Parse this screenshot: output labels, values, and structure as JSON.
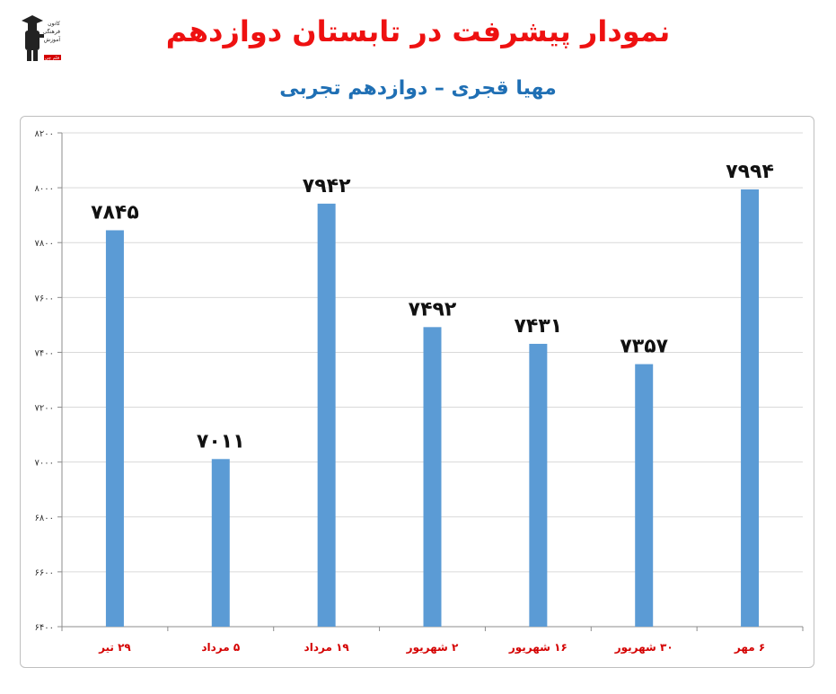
{
  "page": {
    "title": "نمودار پیشرفت در تابستان دوازدهم",
    "subtitle": "مهیا قجری – دوازدهم تجربی",
    "title_color": "#ee1111",
    "subtitle_color": "#1f6fb4"
  },
  "logo": {
    "icon": "graduate-logo-icon",
    "line1": "کانون",
    "line2": "فرهنگی",
    "line3": "آموزش",
    "badge": "قلم چی"
  },
  "chart_data": {
    "type": "bar",
    "categories": [
      "۲۹ تیر",
      "۵ مرداد",
      "۱۹ مرداد",
      "۲ شهریور",
      "۱۶ شهریور",
      "۳۰ شهریور",
      "۶ مهر"
    ],
    "values": [
      7845,
      7011,
      7942,
      7492,
      7431,
      7357,
      7994
    ],
    "data_labels": [
      "۷۸۴۵",
      "۷۰۱۱",
      "۷۹۴۲",
      "۷۴۹۲",
      "۷۴۳۱",
      "۷۳۵۷",
      "۷۹۹۴"
    ],
    "ylim": [
      6400,
      8200
    ],
    "yticks": [
      6400,
      6600,
      6800,
      7000,
      7200,
      7400,
      7600,
      7800,
      8000,
      8200
    ],
    "ytick_labels": [
      "۶۴۰۰",
      "۶۶۰۰",
      "۶۸۰۰",
      "۷۰۰۰",
      "۷۲۰۰",
      "۷۴۰۰",
      "۷۶۰۰",
      "۷۸۰۰",
      "۸۰۰۰",
      "۸۲۰۰"
    ],
    "grid": true,
    "legend": "none",
    "bar_color": "#5b9bd5",
    "category_label_color": "#d40000"
  }
}
